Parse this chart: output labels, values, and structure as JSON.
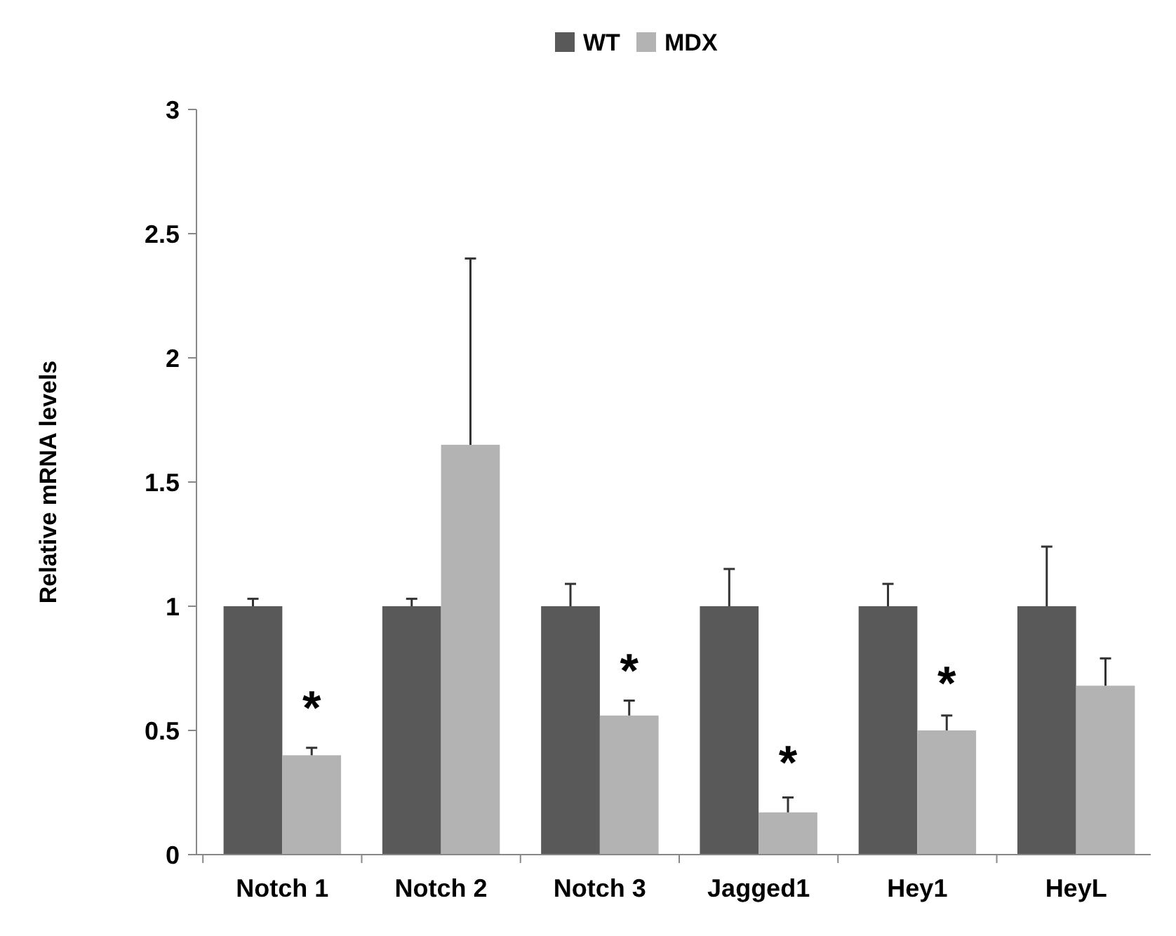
{
  "chart_data": {
    "type": "bar",
    "ylabel": "Relative mRNA levels",
    "categories": [
      "Notch 1",
      "Notch 2",
      "Notch 3",
      "Jagged1",
      "Hey1",
      "HeyL"
    ],
    "series": [
      {
        "name": "WT",
        "color": "#595959",
        "values": [
          1,
          1,
          1,
          1,
          1,
          1
        ],
        "errors": [
          0.03,
          0.03,
          0.09,
          0.15,
          0.09,
          0.24
        ]
      },
      {
        "name": "MDX",
        "color": "#b3b3b3",
        "values": [
          0.4,
          1.65,
          0.56,
          0.17,
          0.5,
          0.68
        ],
        "errors": [
          0.03,
          0.75,
          0.06,
          0.06,
          0.06,
          0.11
        ]
      }
    ],
    "ylim": [
      0,
      3
    ],
    "yticks": [
      0,
      0.5,
      1,
      1.5,
      2,
      2.5,
      3
    ],
    "legend": "top",
    "grid": false,
    "annotations": [
      {
        "text": "*",
        "x": "Notch 1",
        "y": 0.63
      },
      {
        "text": "*",
        "x": "Notch 3",
        "y": 0.78
      },
      {
        "text": "*",
        "x": "Jagged1",
        "y": 0.41
      },
      {
        "text": "*",
        "x": "Hey1",
        "y": 0.73
      }
    ]
  }
}
